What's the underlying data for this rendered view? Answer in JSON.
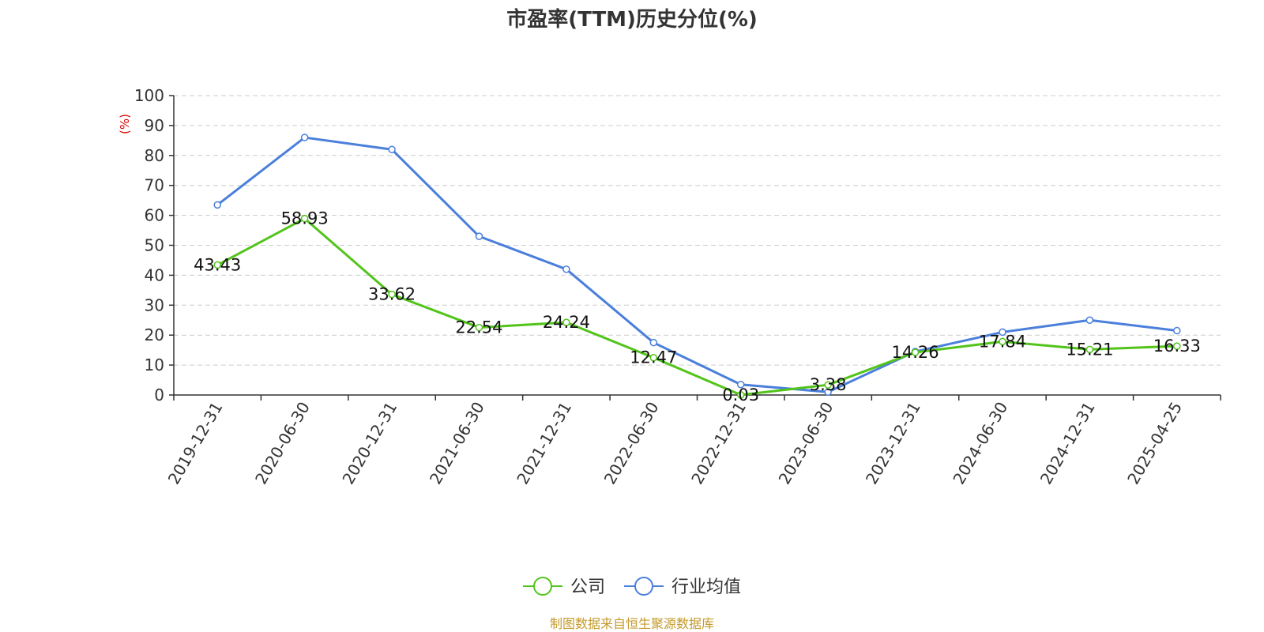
{
  "chart_data": {
    "type": "line",
    "title": "市盈率(TTM)历史分位(%)",
    "ylabel": "(%)",
    "xlabel": "",
    "ylim": [
      0,
      100
    ],
    "yticks": [
      0,
      10,
      20,
      30,
      40,
      50,
      60,
      70,
      80,
      90,
      100
    ],
    "grid": true,
    "legend_position": "bottom-center",
    "categories": [
      "2019-12-31",
      "2020-06-30",
      "2020-12-31",
      "2021-06-30",
      "2021-12-31",
      "2022-06-30",
      "2022-12-31",
      "2023-06-30",
      "2023-12-31",
      "2024-06-30",
      "2024-12-31",
      "2025-04-25"
    ],
    "series": [
      {
        "name": "公司",
        "color": "#52c41a",
        "values": [
          43.43,
          58.93,
          33.62,
          22.54,
          24.24,
          12.47,
          0.03,
          3.38,
          14.26,
          17.84,
          15.21,
          16.33
        ],
        "data_labels": [
          "43.43",
          "58.93",
          "33.62",
          "22.54",
          "24.24",
          "12.47",
          "0.03",
          "3.38",
          "14.26",
          "17.84",
          "15.21",
          "16.33"
        ]
      },
      {
        "name": "行业均值",
        "color": "#4a7fdb",
        "values": [
          63.5,
          86,
          82,
          53,
          42,
          17.5,
          3.5,
          1,
          14.5,
          21,
          25,
          21.5
        ]
      }
    ]
  },
  "footer": "制图数据来自恒生聚源数据库"
}
